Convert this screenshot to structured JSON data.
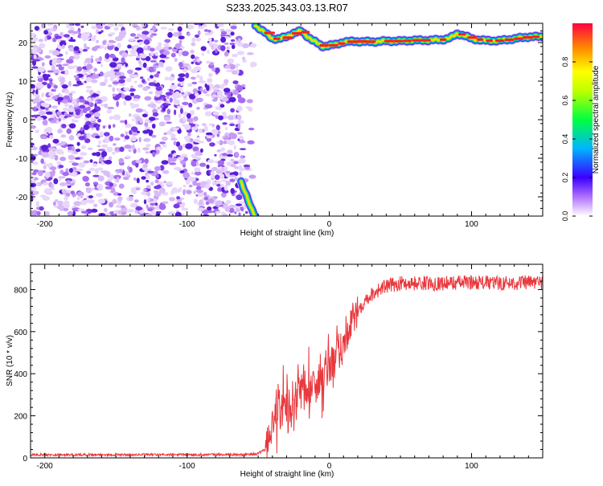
{
  "title": "S233.2025.343.03.13.R07",
  "chart_data": [
    {
      "type": "heatmap",
      "title": "S233.2025.343.03.13.R07",
      "xlabel": "Height of straight line (km)",
      "ylabel": "Frequency (Hz)",
      "xlim": [
        -210,
        150
      ],
      "ylim": [
        -25,
        25
      ],
      "xticks": [
        -200,
        -100,
        0,
        100
      ],
      "yticks": [
        -20,
        -10,
        0,
        10,
        20
      ],
      "colorbar": {
        "label": "Normalized spectral amplitude",
        "range": [
          0,
          1
        ],
        "ticks": [
          "0.0",
          "0.2",
          "0.4",
          "0.6",
          "0.8"
        ]
      },
      "noise_region_x": [
        -210,
        -57
      ],
      "descending_trace": {
        "x": [
          -62,
          -58,
          -55,
          -52
        ],
        "y": [
          -16,
          -20,
          -23,
          -25
        ]
      },
      "signal_trace": {
        "x": [
          -52,
          -45,
          -40,
          -35,
          -30,
          -25,
          -20,
          -15,
          -10,
          -5,
          0,
          5,
          10,
          20,
          30,
          40,
          50,
          60,
          70,
          80,
          85,
          90,
          95,
          100,
          110,
          120,
          130,
          140,
          150
        ],
        "y": [
          24.5,
          22.5,
          21,
          21,
          21.5,
          22.5,
          23,
          21.5,
          20.2,
          19,
          19.3,
          19.5,
          20.2,
          20.3,
          20.2,
          20.4,
          20.4,
          20.6,
          20.6,
          20.8,
          21.2,
          22.3,
          21.8,
          21,
          20.5,
          20.5,
          21,
          21.5,
          21.5
        ]
      }
    },
    {
      "type": "line",
      "xlabel": "Height of straight line (km)",
      "ylabel": "SNR (10 * v/v)",
      "xlim": [
        -210,
        150
      ],
      "ylim": [
        0,
        920
      ],
      "xticks": [
        -200,
        -100,
        0,
        100
      ],
      "yticks": [
        0,
        200,
        400,
        600,
        800
      ],
      "series": [
        {
          "name": "SNR",
          "color": "#e8383d",
          "x": [
            -210,
            -180,
            -150,
            -120,
            -90,
            -60,
            -50,
            -45,
            -42,
            -40,
            -38,
            -35,
            -30,
            -25,
            -20,
            -15,
            -10,
            -5,
            0,
            5,
            10,
            15,
            20,
            25,
            30,
            35,
            40,
            50,
            60,
            80,
            100,
            120,
            150
          ],
          "values": [
            15,
            15,
            15,
            15,
            15,
            15,
            20,
            40,
            90,
            180,
            215,
            230,
            265,
            300,
            320,
            330,
            355,
            380,
            420,
            470,
            540,
            620,
            700,
            750,
            780,
            800,
            815,
            830,
            830,
            830,
            835,
            830,
            835
          ]
        }
      ]
    }
  ]
}
